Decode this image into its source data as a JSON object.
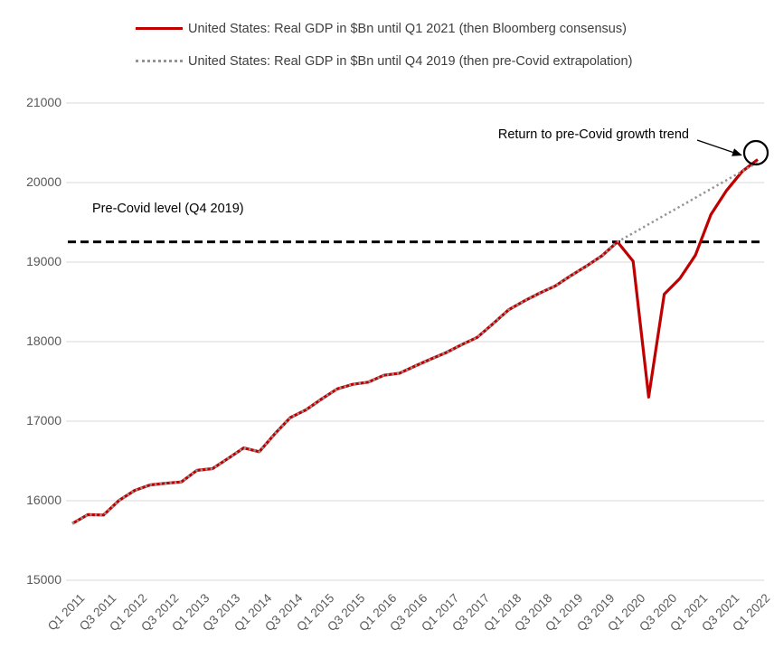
{
  "legend": {
    "items": [
      {
        "label": "United States: Real GDP in $Bn until Q1 2021 (then Bloomberg consensus)",
        "color": "#C00000",
        "style": "solid"
      },
      {
        "label": "United States: Real GDP in $Bn until Q4 2019 (then pre-Covid extrapolation)",
        "color": "#949494",
        "style": "dotted"
      }
    ]
  },
  "annotations": {
    "return_trend": {
      "text": "Return to pre-Covid growth trend"
    },
    "precovid_level": {
      "text": "Pre-Covid level (Q4 2019)",
      "value": 19254,
      "line_color": "#000000",
      "line_style": "dashed"
    }
  },
  "chart_data": {
    "type": "line",
    "title": "",
    "xlabel": "",
    "ylabel": "",
    "ylim": [
      15000,
      21000
    ],
    "y_ticks": [
      15000,
      16000,
      17000,
      18000,
      19000,
      20000,
      21000
    ],
    "grid": "horizontal-light",
    "legend_position": "top-left",
    "x": [
      "Q1 2011",
      "Q2 2011",
      "Q3 2011",
      "Q4 2011",
      "Q1 2012",
      "Q2 2012",
      "Q3 2012",
      "Q4 2012",
      "Q1 2013",
      "Q2 2013",
      "Q3 2013",
      "Q4 2013",
      "Q1 2014",
      "Q2 2014",
      "Q3 2014",
      "Q4 2014",
      "Q1 2015",
      "Q2 2015",
      "Q3 2015",
      "Q4 2015",
      "Q1 2016",
      "Q2 2016",
      "Q3 2016",
      "Q4 2016",
      "Q1 2017",
      "Q2 2017",
      "Q3 2017",
      "Q4 2017",
      "Q1 2018",
      "Q2 2018",
      "Q3 2018",
      "Q4 2018",
      "Q1 2019",
      "Q2 2019",
      "Q3 2019",
      "Q4 2019",
      "Q1 2020",
      "Q2 2020",
      "Q3 2020",
      "Q4 2020",
      "Q1 2021",
      "Q2 2021",
      "Q3 2021",
      "Q4 2021",
      "Q1 2022"
    ],
    "x_ticks_shown": [
      "Q1 2011",
      "Q3 2011",
      "Q1 2012",
      "Q3 2012",
      "Q1 2013",
      "Q3 2013",
      "Q1 2014",
      "Q3 2014",
      "Q1 2015",
      "Q3 2015",
      "Q1 2016",
      "Q3 2016",
      "Q1 2017",
      "Q3 2017",
      "Q1 2018",
      "Q3 2018",
      "Q1 2019",
      "Q3 2019",
      "Q1 2020",
      "Q3 2020",
      "Q1 2021",
      "Q3 2021",
      "Q1 2022"
    ],
    "series": [
      {
        "name": "United States: Real GDP in $Bn until Q1 2021 (then Bloomberg consensus)",
        "color": "#C00000",
        "style": "solid",
        "values": [
          15712,
          15825,
          15820,
          16004,
          16130,
          16199,
          16219,
          16236,
          16382,
          16403,
          16532,
          16664,
          16616,
          16842,
          17047,
          17143,
          17278,
          17406,
          17464,
          17491,
          17577,
          17603,
          17693,
          17779,
          17863,
          17962,
          18054,
          18224,
          18400,
          18510,
          18610,
          18700,
          18830,
          18950,
          19080,
          19254,
          19011,
          17303,
          18597,
          18794,
          19088,
          19600,
          19900,
          20140,
          20290
        ]
      },
      {
        "name": "United States: Real GDP in $Bn until Q4 2019 (then pre-Covid extrapolation)",
        "color": "#949494",
        "style": "dotted",
        "values": [
          15712,
          15825,
          15820,
          16004,
          16130,
          16199,
          16219,
          16236,
          16382,
          16403,
          16532,
          16664,
          16616,
          16842,
          17047,
          17143,
          17278,
          17406,
          17464,
          17491,
          17577,
          17603,
          17693,
          17779,
          17863,
          17962,
          18054,
          18224,
          18400,
          18510,
          18610,
          18700,
          18830,
          18950,
          19080,
          19254,
          19365,
          19476,
          19587,
          19698,
          19809,
          19920,
          20031,
          20142,
          20253
        ]
      }
    ],
    "level_line": {
      "value": 19254,
      "color": "#000000",
      "style": "dashed"
    }
  },
  "colors": {
    "actual_line": "#C00000",
    "extrapolation_line": "#949494",
    "level_line": "#000000",
    "gridline": "#D9D9D9",
    "tick_text": "#595959",
    "legend_text": "#3F3F3F",
    "annotation_text": "#000000"
  }
}
